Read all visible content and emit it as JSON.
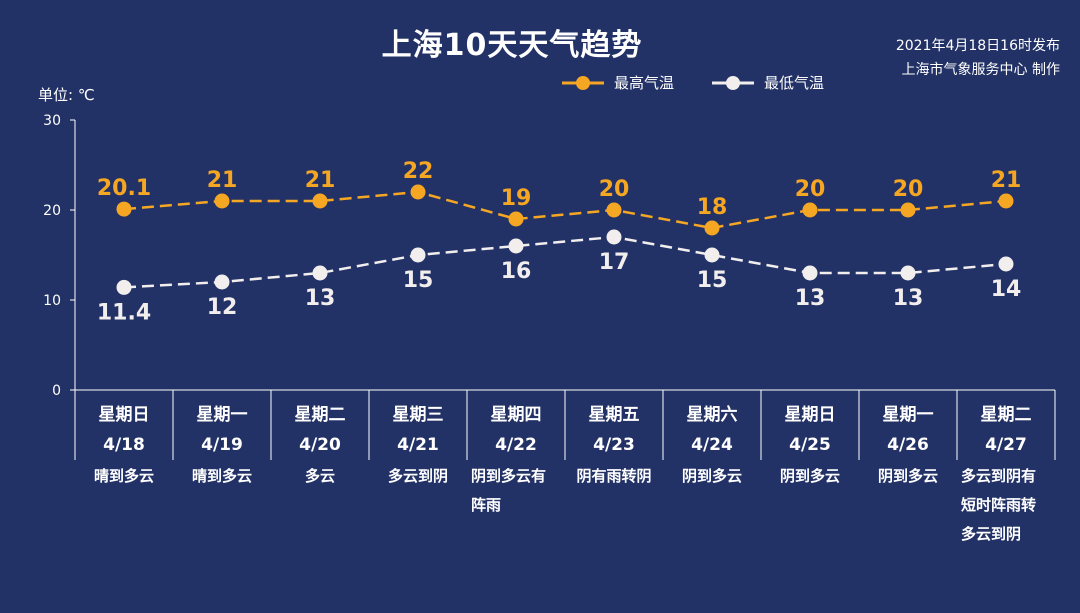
{
  "title": "上海10天天气趋势",
  "publish": {
    "line1": "2021年4月18日16时发布",
    "line2": "上海市气象服务中心 制作"
  },
  "unit_label": "单位: ℃",
  "colors": {
    "background": "#233266",
    "high": "#F5A623",
    "low": "#F2EEEE",
    "axis": "#FFFFFF"
  },
  "chart_data": {
    "type": "line",
    "title": "上海10天天气趋势",
    "ylabel": "单位: ℃",
    "ylim": [
      0,
      30
    ],
    "yticks": [
      0,
      10,
      20,
      30
    ],
    "grid": false,
    "legend_position": "top-center",
    "categories": [
      "4/18",
      "4/19",
      "4/20",
      "4/21",
      "4/22",
      "4/23",
      "4/24",
      "4/25",
      "4/26",
      "4/27"
    ],
    "weekdays": [
      "星期日",
      "星期一",
      "星期二",
      "星期三",
      "星期四",
      "星期五",
      "星期六",
      "星期日",
      "星期一",
      "星期二"
    ],
    "weather": [
      [
        "晴到多云"
      ],
      [
        "晴到多云"
      ],
      [
        "多云"
      ],
      [
        "多云到阴"
      ],
      [
        "阴到多云有",
        "阵雨"
      ],
      [
        "阴有雨转阴"
      ],
      [
        "阴到多云"
      ],
      [
        "阴到多云"
      ],
      [
        "阴到多云"
      ],
      [
        "多云到阴有",
        "短时阵雨转",
        "多云到阴"
      ]
    ],
    "series": [
      {
        "name": "最高气温",
        "color": "#F5A623",
        "values": [
          20.1,
          21,
          21,
          22,
          19,
          20,
          18,
          20,
          20,
          21
        ],
        "labels": [
          "20.1",
          "21",
          "21",
          "22",
          "19",
          "20",
          "18",
          "20",
          "20",
          "21"
        ]
      },
      {
        "name": "最低气温",
        "color": "#F2EEEE",
        "values": [
          11.4,
          12,
          13,
          15,
          16,
          17,
          15,
          13,
          13,
          14
        ],
        "labels": [
          "11.4",
          "12",
          "13",
          "15",
          "16",
          "17",
          "15",
          "13",
          "13",
          "14"
        ]
      }
    ]
  }
}
